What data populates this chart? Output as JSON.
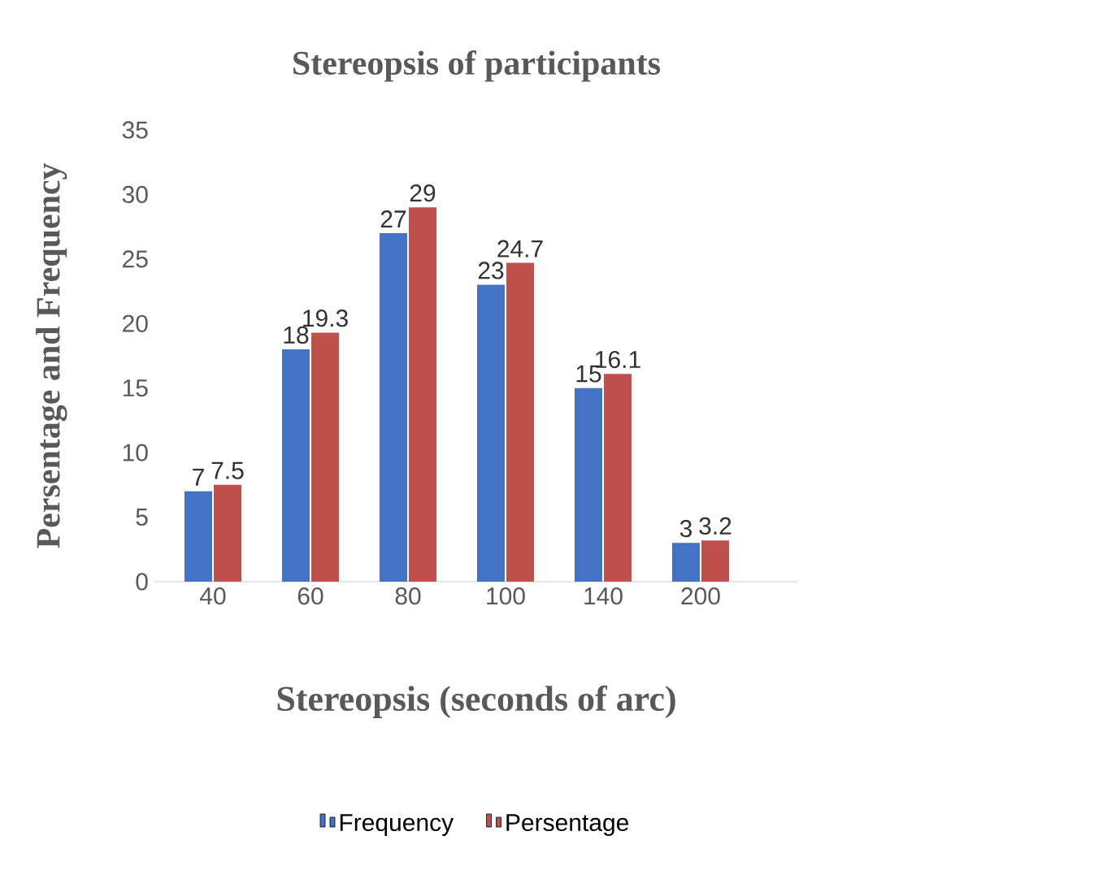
{
  "chart_data": {
    "type": "bar",
    "title": "Stereopsis of participants",
    "xlabel": "Stereopsis (seconds of arc)",
    "ylabel": "Persentage and Frequency",
    "categories": [
      "40",
      "60",
      "80",
      "100",
      "140",
      "200"
    ],
    "series": [
      {
        "name": "Frequency",
        "color": "#4472c4",
        "values": [
          7,
          18,
          27,
          23,
          15,
          3
        ]
      },
      {
        "name": "Persentage",
        "color": "#c0504d",
        "values": [
          7.5,
          19.3,
          29,
          24.7,
          16.1,
          3.2
        ]
      }
    ],
    "ylim": [
      0,
      35
    ],
    "yticks": [
      0,
      5,
      10,
      15,
      20,
      25,
      30,
      35
    ],
    "data_labels": true,
    "legend": "bottom"
  }
}
